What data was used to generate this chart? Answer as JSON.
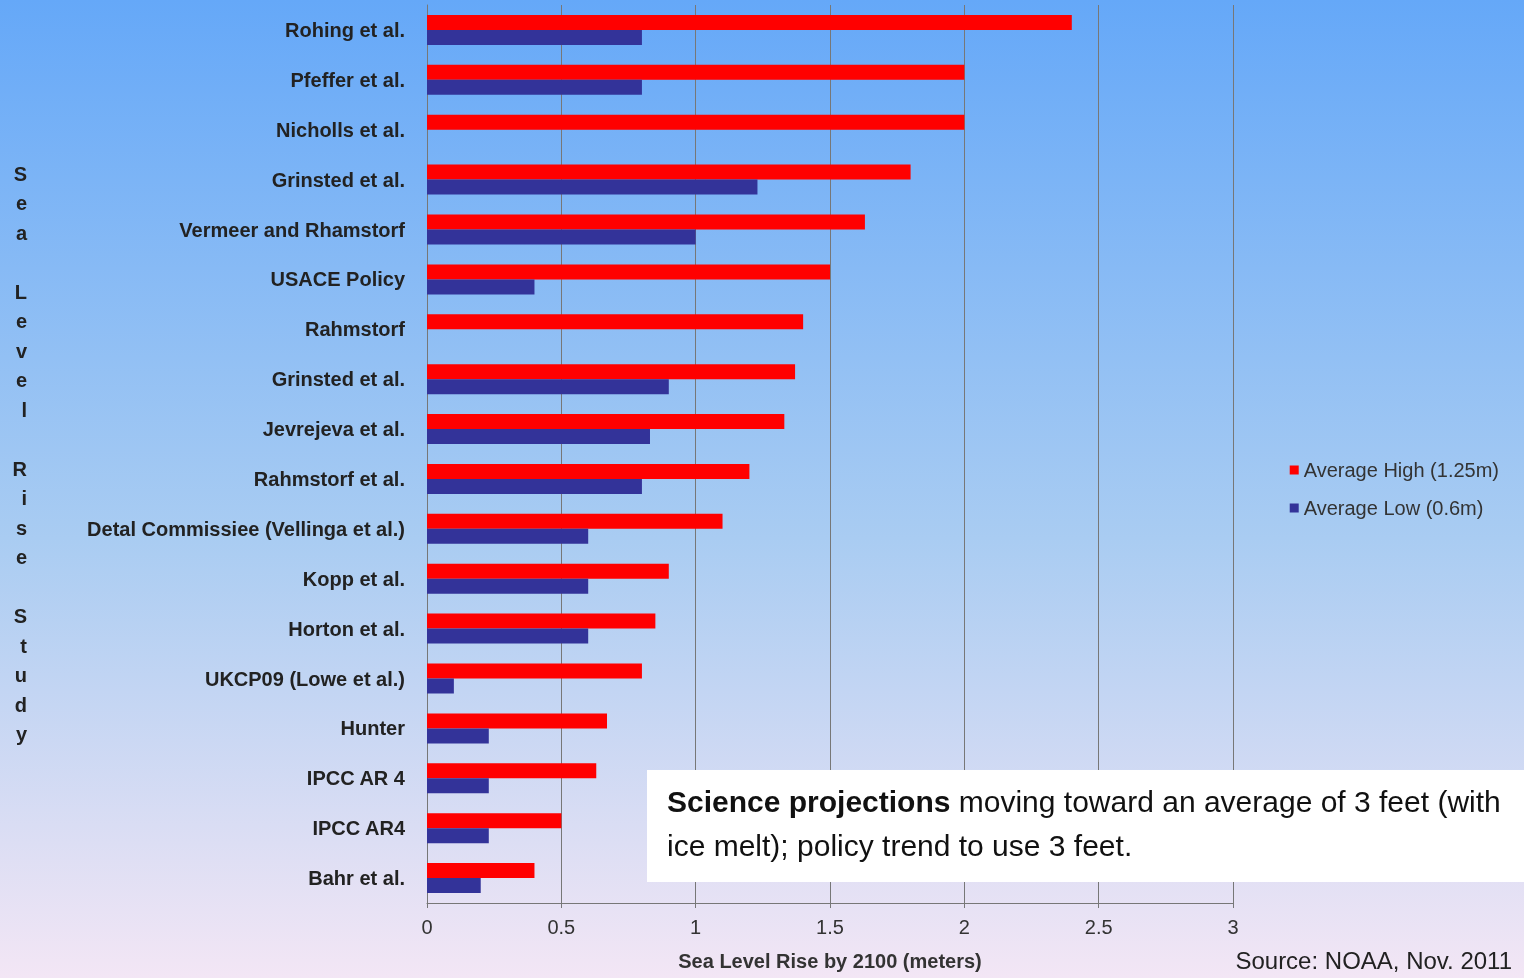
{
  "chart_data": {
    "type": "bar",
    "orientation": "horizontal",
    "xlabel": "Sea Level Rise by 2100 (meters)",
    "ylabel": "Sea Level Rise Study",
    "categories": [
      "Rohing et al.",
      "Pfeffer et al.",
      "Nicholls et al.",
      "Grinsted et al.",
      "Vermeer and Rhamstorf",
      "USACE Policy",
      "Rahmstorf",
      "Grinsted et al.",
      "Jevrejeva et al.",
      "Rahmstorf et al.",
      "Detal Commissiee (Vellinga et al.)",
      "Kopp et al.",
      "Horton et al.",
      "UKCP09 (Lowe et al.)",
      "Hunter",
      "IPCC AR 4",
      "IPCC AR4",
      "Bahr et al."
    ],
    "series": [
      {
        "name": "Average High (1.25m)",
        "color": "#ff0000",
        "values": [
          2.4,
          2.0,
          2.0,
          1.8,
          1.63,
          1.5,
          1.4,
          1.37,
          1.33,
          1.2,
          1.1,
          0.9,
          0.85,
          0.8,
          0.67,
          0.63,
          0.5,
          0.4
        ]
      },
      {
        "name": "Average Low (0.6m)",
        "color": "#333399",
        "values": [
          0.8,
          0.8,
          null,
          1.23,
          1.0,
          0.4,
          null,
          0.9,
          0.83,
          0.8,
          0.6,
          0.6,
          0.6,
          0.1,
          0.23,
          0.23,
          0.23,
          0.2
        ]
      }
    ],
    "xlim": [
      0,
      3
    ],
    "xticks": [
      0,
      0.5,
      1,
      1.5,
      2,
      2.5,
      3
    ],
    "grid": "x",
    "legend": "right",
    "annotations": [
      "Science projections moving toward an average of 3 feet (with ice melt); policy trend to use 3 feet.",
      "Source: NOAA, Nov. 2011"
    ]
  }
}
